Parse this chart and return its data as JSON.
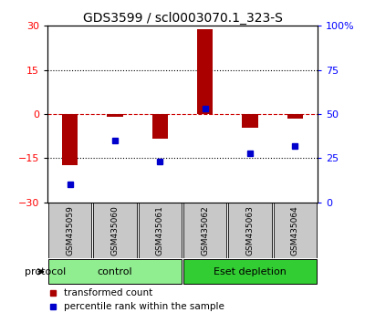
{
  "title": "GDS3599 / scl0003070.1_323-S",
  "samples": [
    "GSM435059",
    "GSM435060",
    "GSM435061",
    "GSM435062",
    "GSM435063",
    "GSM435064"
  ],
  "red_values": [
    -17.5,
    -1.0,
    -8.5,
    29.0,
    -4.5,
    -1.5
  ],
  "blue_values_pct": [
    10,
    35,
    23,
    53,
    28,
    32
  ],
  "ylim_left": [
    -30,
    30
  ],
  "ylim_right": [
    0,
    100
  ],
  "yticks_left": [
    -30,
    -15,
    0,
    15,
    30
  ],
  "yticks_right": [
    0,
    25,
    50,
    75,
    100
  ],
  "ytick_labels_right": [
    "0",
    "25",
    "50",
    "75",
    "100%"
  ],
  "group_labels": [
    "control",
    "Eset depletion"
  ],
  "group_colors": [
    "#90ee90",
    "#32cd32"
  ],
  "protocol_label": "protocol",
  "legend_red": "transformed count",
  "legend_blue": "percentile rank within the sample",
  "bar_color": "#aa0000",
  "dot_color": "#0000cc",
  "dotted_line_color": "#000000",
  "zero_line_color": "#cc0000",
  "bg_plot": "#ffffff",
  "bg_sample_label": "#c8c8c8",
  "sample_label_fontsize": 6.5,
  "title_fontsize": 10,
  "bar_width": 0.35
}
